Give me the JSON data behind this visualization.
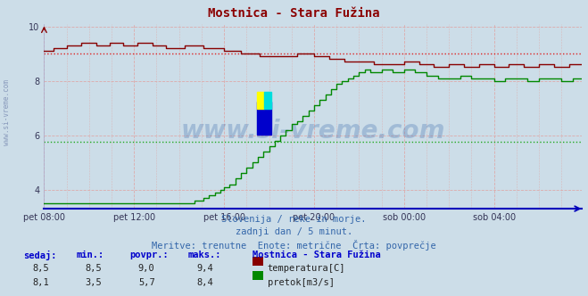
{
  "title": "Mostnica - Stara Fužina",
  "title_color": "#8b0000",
  "bg_color": "#ccdde8",
  "plot_bg_color": "#ccdde8",
  "x_labels": [
    "pet 08:00",
    "pet 12:00",
    "pet 16:00",
    "pet 20:00",
    "sob 00:00",
    "sob 04:00"
  ],
  "x_ticks_idx": [
    0,
    48,
    96,
    144,
    192,
    240
  ],
  "x_max": 287,
  "y_min": 3.3,
  "y_max": 10.1,
  "y_ticks": [
    4,
    6,
    8,
    10
  ],
  "temp_avg": 9.0,
  "flow_avg": 5.75,
  "temp_color": "#880000",
  "flow_color": "#008800",
  "avg_temp_color": "#dd2222",
  "avg_flow_color": "#22aa22",
  "axis_color": "#0000bb",
  "watermark": "www.si-vreme.com",
  "watermark_color": "#3366aa",
  "watermark_alpha": 0.28,
  "subtitle1": "Slovenija / reke in morje.",
  "subtitle2": "zadnji dan / 5 minut.",
  "subtitle3": "Meritve: trenutne  Enote: metrične  Črta: povprečje",
  "subtitle_color": "#3366aa",
  "table_header": "Mostnica - Stara Fužina",
  "table_color": "#0000cc",
  "label_sedaj": "sedaj:",
  "label_min": "min.:",
  "label_povpr": "povpr.:",
  "label_maks": "maks.:",
  "temp_sedaj": "8,5",
  "temp_min_str": "8,5",
  "temp_povpr_str": "9,0",
  "temp_maks_str": "9,4",
  "flow_sedaj": "8,1",
  "flow_min_str": "3,5",
  "flow_povpr_str": "5,7",
  "flow_maks_str": "8,4",
  "legend_temp": "temperatura[C]",
  "legend_flow": "pretok[m3/s]",
  "side_watermark": "www.si-vreme.com",
  "side_watermark_color": "#8899bb"
}
